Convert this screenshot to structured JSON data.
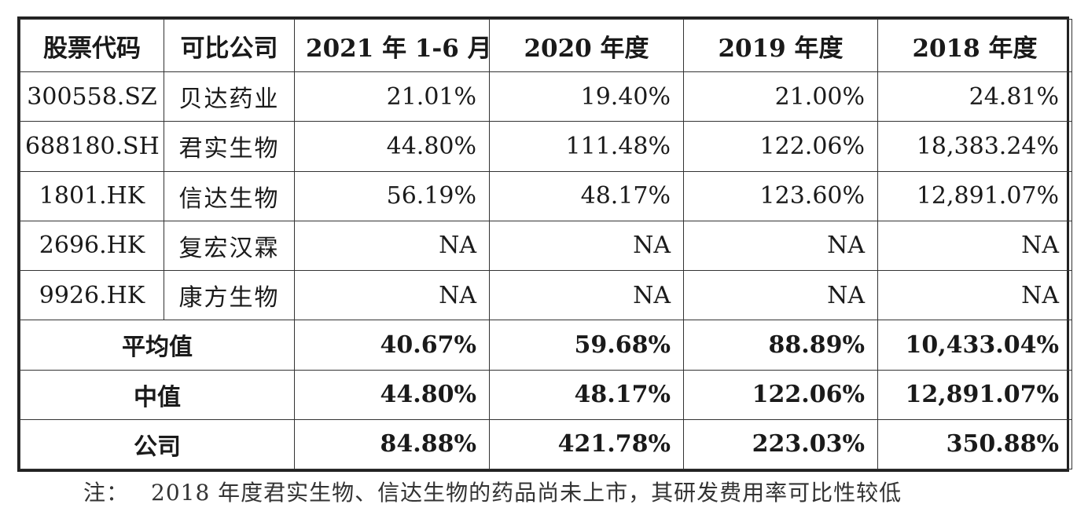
{
  "table": {
    "headers": [
      "股票代码",
      "可比公司",
      "2021 年 1-6 月",
      "2020 年度",
      "2019 年度",
      "2018 年度"
    ],
    "rows": [
      {
        "code": "300558.SZ",
        "name": "贝达药业",
        "values": [
          "21.01%",
          "19.40%",
          "21.00%",
          "24.81%"
        ]
      },
      {
        "code": "688180.SH",
        "name": "君实生物",
        "values": [
          "44.80%",
          "111.48%",
          "122.06%",
          "18,383.24%"
        ]
      },
      {
        "code": "1801.HK",
        "name": "信达生物",
        "values": [
          "56.19%",
          "48.17%",
          "123.60%",
          "12,891.07%"
        ]
      },
      {
        "code": "2696.HK",
        "name": "复宏汉霖",
        "values": [
          "NA",
          "NA",
          "NA",
          "NA"
        ]
      },
      {
        "code": "9926.HK",
        "name": "康方生物",
        "values": [
          "NA",
          "NA",
          "NA",
          "NA"
        ]
      }
    ],
    "summary": [
      {
        "label": "平均值",
        "values": [
          "40.67%",
          "59.68%",
          "88.89%",
          "10,433.04%"
        ]
      },
      {
        "label": "中值",
        "values": [
          "44.80%",
          "48.17%",
          "122.06%",
          "12,891.07%"
        ]
      },
      {
        "label": "公司",
        "values": [
          "84.88%",
          "421.78%",
          "223.03%",
          "350.88%"
        ]
      }
    ]
  },
  "note": {
    "label": "注：",
    "text": "2018 年度君实生物、信达生物的药品尚未上市，其研发费用率可比性较低"
  }
}
